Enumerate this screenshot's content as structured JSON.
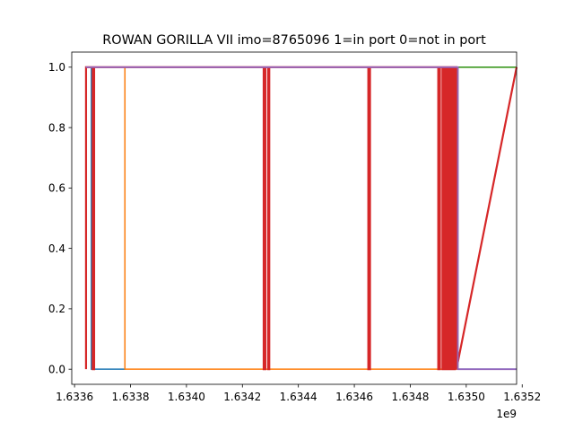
{
  "chart_data": {
    "type": "line",
    "title": "ROWAN GORILLA VII imo=8765096 1=in port 0=not in port",
    "xlabel": "",
    "ylabel": "",
    "x_offset_label": "1e9",
    "x_scale": 1000000000,
    "xlim": [
      1.63359,
      1.63518
    ],
    "ylim": [
      -0.05,
      1.05
    ],
    "xticks": [
      1.6336,
      1.6338,
      1.634,
      1.6342,
      1.6344,
      1.6346,
      1.6348,
      1.635,
      1.6352
    ],
    "xtick_labels": [
      "1.6336",
      "1.6338",
      "1.6340",
      "1.6342",
      "1.6344",
      "1.6346",
      "1.6348",
      "1.6350",
      "1.6352"
    ],
    "yticks": [
      0.0,
      0.2,
      0.4,
      0.6,
      0.8,
      1.0
    ],
    "ytick_labels": [
      "0.0",
      "0.2",
      "0.4",
      "0.6",
      "0.8",
      "1.0"
    ],
    "grid": false,
    "legend": null,
    "series": [
      {
        "color": "#1f77b4",
        "line_width": 1.5,
        "x": [
          1.63364,
          1.63366,
          1.63366,
          1.63378,
          1.63378,
          1.63497,
          1.63497,
          1.63518
        ],
        "y": [
          1,
          1,
          0,
          0,
          1,
          1,
          0,
          0
        ]
      },
      {
        "color": "#ff7f0e",
        "line_width": 1.5,
        "x": [
          1.63364,
          1.63378,
          1.63378,
          1.63497,
          1.63497,
          1.63518
        ],
        "y": [
          1,
          1,
          0,
          0,
          1,
          1
        ]
      },
      {
        "color": "#2ca02c",
        "line_width": 1.5,
        "x": [
          1.63497,
          1.63518
        ],
        "y": [
          1,
          1
        ]
      },
      {
        "color": "#d62728",
        "line_width": 2.2,
        "x": [
          1.633641,
          1.633641,
          1.633643,
          1.633665,
          1.633665,
          1.633668,
          1.63367,
          1.63367,
          1.634276,
          1.634276,
          1.63428,
          1.634282,
          1.634282,
          1.63429,
          1.634292,
          1.634292,
          1.634294,
          1.634296,
          1.634296,
          1.63465,
          1.63465,
          1.634654,
          1.634656,
          1.634656,
          1.6349,
          1.6349,
          1.634904,
          1.634906,
          1.634906,
          1.634913,
          1.634915,
          1.634915,
          1.634918,
          1.63492,
          1.63492,
          1.634923,
          1.634925,
          1.634925,
          1.634928,
          1.63493,
          1.63493,
          1.634933,
          1.634935,
          1.634935,
          1.634938,
          1.63494,
          1.63494,
          1.634943,
          1.634945,
          1.634945,
          1.634948,
          1.63495,
          1.63495,
          1.634953,
          1.634955,
          1.634955,
          1.634958,
          1.63496,
          1.63496,
          1.634963,
          1.634965,
          1.634965,
          1.63518
        ],
        "y": [
          0,
          1,
          1,
          1,
          0,
          0,
          0,
          1,
          1,
          0,
          0,
          0,
          1,
          1,
          1,
          0,
          0,
          0,
          1,
          1,
          0,
          0,
          0,
          1,
          1,
          0,
          0,
          0,
          1,
          1,
          1,
          0,
          0,
          0,
          1,
          1,
          1,
          0,
          0,
          0,
          1,
          1,
          1,
          0,
          0,
          0,
          1,
          1,
          1,
          0,
          0,
          0,
          1,
          1,
          1,
          0,
          0,
          0,
          1,
          1,
          1,
          0,
          1
        ]
      },
      {
        "color": "#9467bd",
        "line_width": 1.8,
        "x": [
          1.63364,
          1.63497,
          1.63497,
          1.63518
        ],
        "y": [
          1,
          1,
          0,
          0
        ]
      }
    ]
  }
}
